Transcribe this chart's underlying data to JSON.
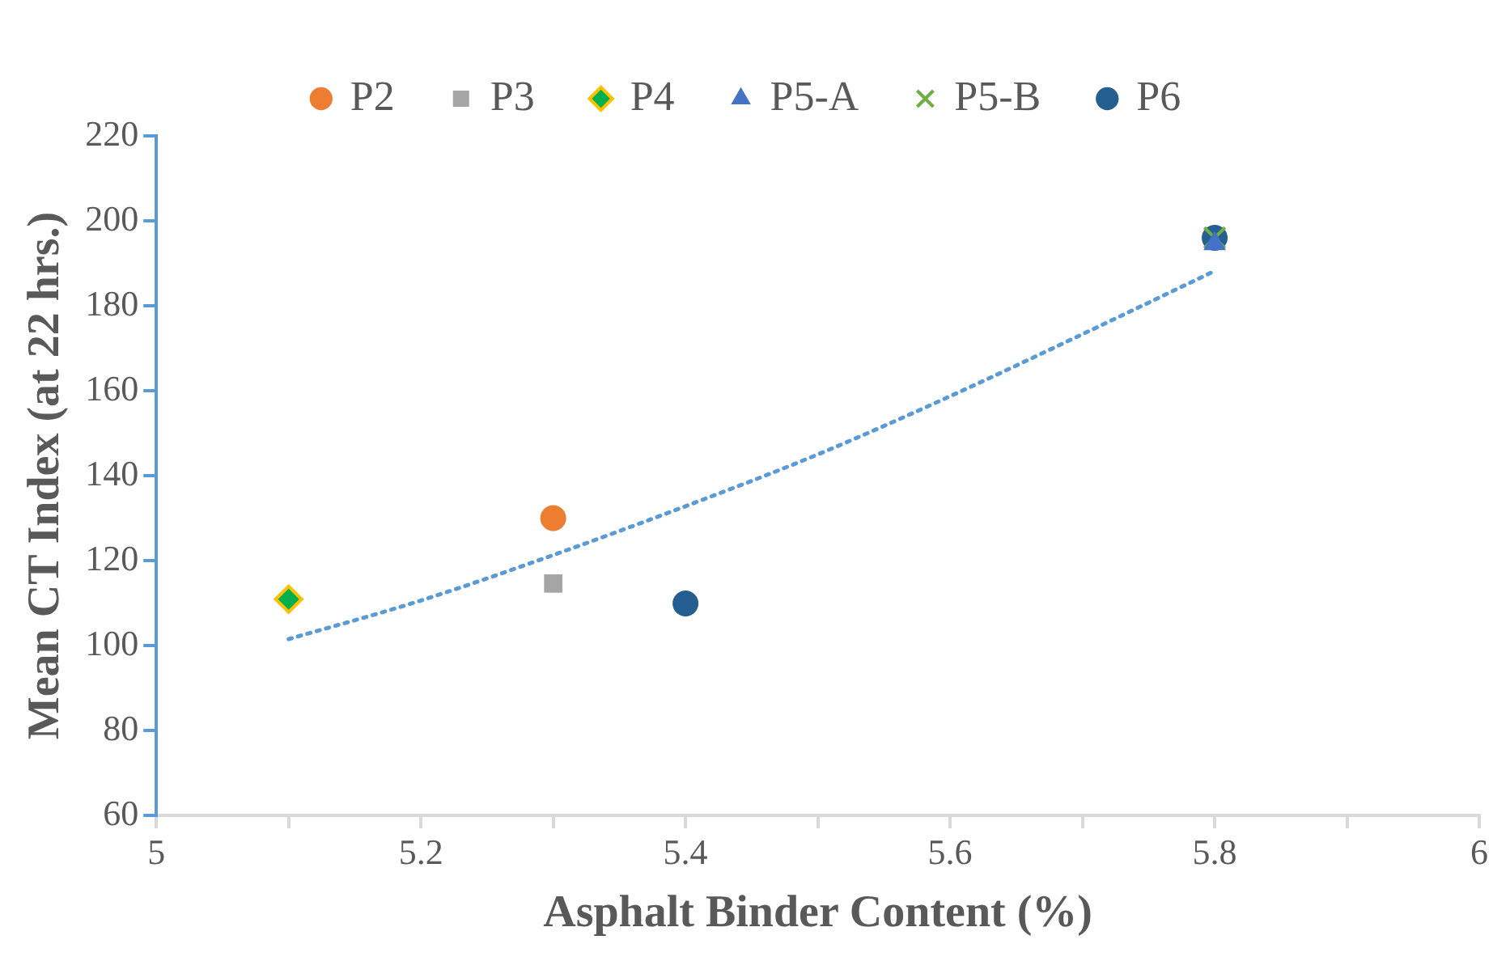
{
  "chart_data": {
    "type": "scatter",
    "xlabel": "Asphalt Binder Content (%)",
    "ylabel": "Mean CT Index (at 22 hrs.)",
    "xlim": [
      5,
      6
    ],
    "ylim": [
      60,
      220
    ],
    "xticks": [
      5,
      {
        "value": 5.1,
        "label": null
      },
      5.2,
      {
        "value": 5.3,
        "label": null
      },
      5.4,
      {
        "value": 5.5,
        "label": null
      },
      5.6,
      {
        "value": 5.7,
        "label": null
      },
      5.8,
      {
        "value": 5.9,
        "label": null
      },
      6
    ],
    "yticks": [
      60,
      80,
      100,
      120,
      140,
      160,
      180,
      200,
      220
    ],
    "grid": false,
    "legend": "top",
    "series": [
      {
        "type": "line",
        "color": "#5b9bd5",
        "line_style": "dotted",
        "marker": "none",
        "x": [
          5.1,
          5.2,
          5.3,
          5.4,
          5.5,
          5.6,
          5.7,
          5.8
        ],
        "values": [
          101.5,
          110.6,
          121.3,
          132.8,
          145,
          158.7,
          173.3,
          188.2
        ]
      },
      {
        "name": "P2",
        "color": "#ed7d31",
        "marker": "circle",
        "x": [
          5.3
        ],
        "values": [
          130
        ]
      },
      {
        "name": "P3",
        "color": "#a5a5a5",
        "marker": "square",
        "x": [
          5.3
        ],
        "values": [
          114.6
        ]
      },
      {
        "name": "P4",
        "color": "#00b050",
        "marker": "diamond",
        "x": [
          5.1
        ],
        "values": [
          110.9
        ]
      },
      {
        "name": "P5-A",
        "color": "#4472c4",
        "marker": "triangle",
        "x": [
          5.8
        ],
        "values": [
          194.6
        ]
      },
      {
        "name": "P5-B",
        "color": "#70ad47",
        "marker": "cross",
        "x": [
          5.8
        ],
        "values": [
          196
        ]
      },
      {
        "name": "P6",
        "color": "#255e91",
        "marker": "circle",
        "x": [
          5.4,
          5.8
        ],
        "values": [
          109.9,
          196
        ]
      }
    ]
  }
}
